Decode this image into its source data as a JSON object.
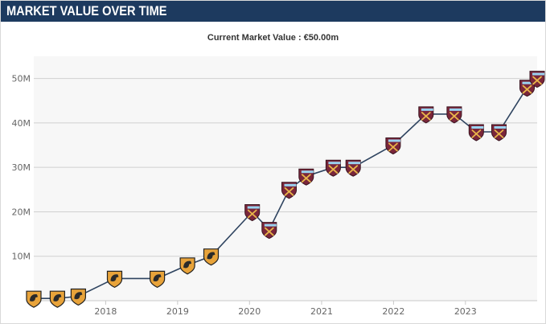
{
  "header": {
    "title": "MARKET VALUE OVER TIME"
  },
  "subtitle": "Current Market Value : €50.00m",
  "colors": {
    "header_bg": "#1d3a5f",
    "line": "#2f4460",
    "plot_bg": "#f7f7f7",
    "club_early": "#e8a33a",
    "club_late": "#7a263a"
  },
  "chart_data": {
    "type": "line",
    "title": "",
    "xlabel": "",
    "ylabel": "",
    "x_ticks": [
      "2018",
      "2019",
      "2020",
      "2021",
      "2022",
      "2023"
    ],
    "y_ticks": [
      "10M",
      "20M",
      "30M",
      "40M",
      "50M"
    ],
    "xlim": [
      "2017-01-01",
      "2023-12-31"
    ],
    "ylim": [
      0,
      55
    ],
    "grid": true,
    "legend": "none",
    "series": [
      {
        "points": [
          {
            "x": "2017-01-01",
            "y": 0.5,
            "club": "early"
          },
          {
            "x": "2017-05-01",
            "y": 0.5,
            "club": "early"
          },
          {
            "x": "2017-08-15",
            "y": 1,
            "club": "early"
          },
          {
            "x": "2018-02-15",
            "y": 5,
            "club": "early"
          },
          {
            "x": "2018-09-20",
            "y": 5,
            "club": "early"
          },
          {
            "x": "2019-02-20",
            "y": 8,
            "club": "early"
          },
          {
            "x": "2019-06-20",
            "y": 10,
            "club": "early"
          },
          {
            "x": "2020-01-15",
            "y": 20,
            "club": "late"
          },
          {
            "x": "2020-04-10",
            "y": 16,
            "club": "late"
          },
          {
            "x": "2020-07-20",
            "y": 25,
            "club": "late"
          },
          {
            "x": "2020-10-15",
            "y": 28,
            "club": "late"
          },
          {
            "x": "2021-03-01",
            "y": 30,
            "club": "late"
          },
          {
            "x": "2021-06-10",
            "y": 30,
            "club": "late"
          },
          {
            "x": "2021-12-30",
            "y": 35,
            "club": "late"
          },
          {
            "x": "2022-06-15",
            "y": 42,
            "club": "late"
          },
          {
            "x": "2022-11-05",
            "y": 42,
            "club": "late"
          },
          {
            "x": "2023-02-25",
            "y": 38,
            "club": "late"
          },
          {
            "x": "2023-06-20",
            "y": 38,
            "club": "late"
          },
          {
            "x": "2023-11-10",
            "y": 48,
            "club": "late"
          },
          {
            "x": "2023-12-31",
            "y": 50,
            "club": "late"
          }
        ]
      }
    ]
  }
}
